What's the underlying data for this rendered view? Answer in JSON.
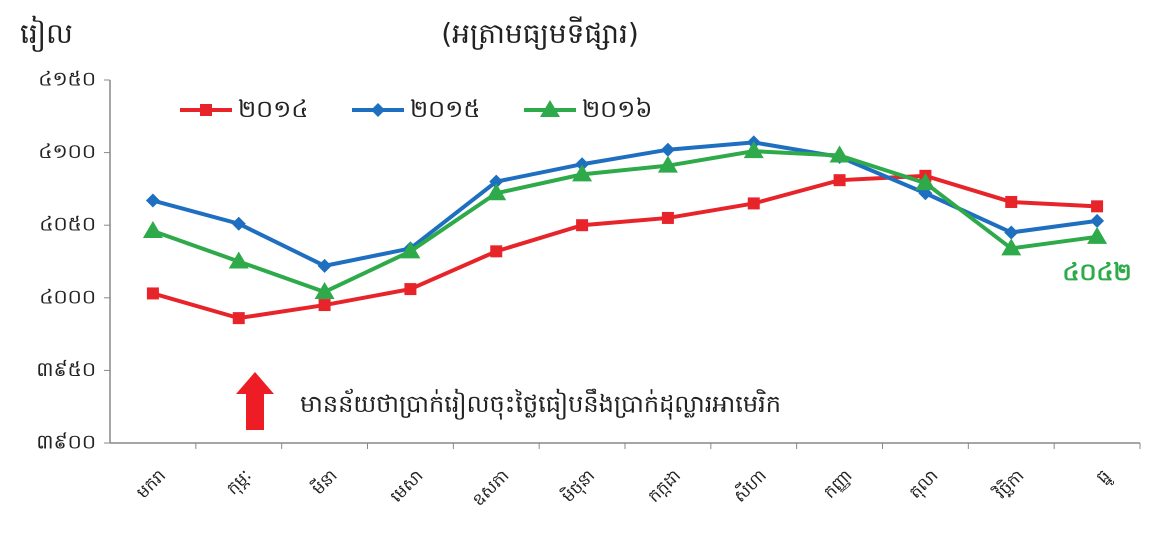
{
  "chart_data": {
    "type": "line",
    "title": "(អត្រាមធ្យមទីផ្សារ)",
    "y_label": "រៀល",
    "annotation": "មានន័យថាប្រាក់រៀលចុះថ្លៃធៀបនឹងប្រាក់ដុល្លារអាមេរិក",
    "categories": [
      "មករា",
      "កុម្ភៈ",
      "មីនា",
      "មេសា",
      "ឧសភា",
      "មិថុនា",
      "កក្កដា",
      "សីហា",
      "កញ្ញា",
      "តុលា",
      "វិច្ឆិកា",
      "ធ្នូ"
    ],
    "series": [
      {
        "name": "២០១៤",
        "color": "#e8242b",
        "marker": "square",
        "values": [
          4003,
          3986,
          3995,
          4006,
          4032,
          4050,
          4055,
          4065,
          4081,
          4084,
          4066,
          4063
        ]
      },
      {
        "name": "២០១៥",
        "color": "#1f6fc1",
        "marker": "diamond",
        "values": [
          4067,
          4051,
          4022,
          4034,
          4080,
          4092,
          4102,
          4107,
          4097,
          4072,
          4045,
          4053
        ]
      },
      {
        "name": "២០១៦",
        "color": "#2eaa4a",
        "marker": "triangle",
        "values": [
          4046,
          4025,
          4004,
          4032,
          4072,
          4085,
          4091,
          4101,
          4098,
          4079,
          4034,
          4042
        ],
        "value_labels": [
          null,
          null,
          null,
          null,
          null,
          null,
          null,
          null,
          null,
          null,
          null,
          "៤០៤២"
        ]
      }
    ],
    "ylim": [
      3900,
      4150
    ],
    "yticks": [
      {
        "value": 3900,
        "label": "៣៩០០"
      },
      {
        "value": 3950,
        "label": "៣៩៥០"
      },
      {
        "value": 4000,
        "label": "៤០០០"
      },
      {
        "value": 4050,
        "label": "៤០៥០"
      },
      {
        "value": 4100,
        "label": "៤១០០"
      },
      {
        "value": 4150,
        "label": "៤១៥០"
      }
    ],
    "grid": false,
    "legend": "top"
  }
}
